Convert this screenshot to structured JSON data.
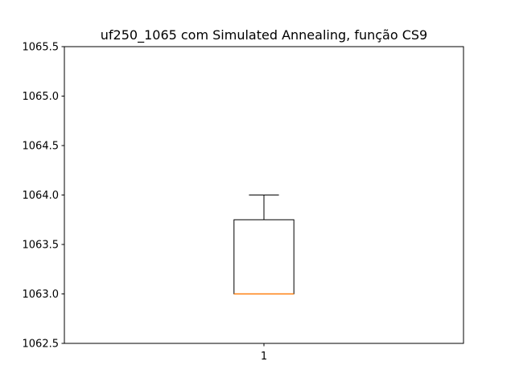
{
  "chart_data": {
    "type": "box",
    "title": "uf250_1065 com Simulated Annealing, função CS9",
    "xlabel": "",
    "ylabel": "",
    "ylim": [
      1062.5,
      1065.5
    ],
    "y_ticks": [
      1062.5,
      1063.0,
      1063.5,
      1064.0,
      1064.5,
      1065.0,
      1065.5
    ],
    "y_tick_labels": [
      "1062.5",
      "1063.0",
      "1063.5",
      "1064.0",
      "1064.5",
      "1065.0",
      "1065.5"
    ],
    "x_tick_labels": [
      "1"
    ],
    "grid": false,
    "boxes": [
      {
        "label": "1",
        "whisker_low": 1063.0,
        "q1": 1063.0,
        "median": 1063.0,
        "q3": 1063.75,
        "whisker_high": 1064.0
      }
    ],
    "colors": {
      "box": "#000000",
      "median": "#ff7f0e"
    }
  }
}
